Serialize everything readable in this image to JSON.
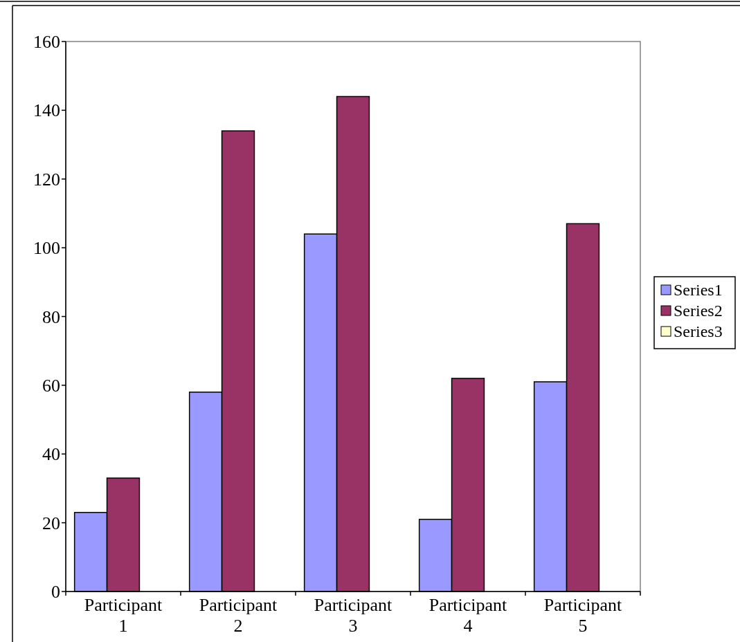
{
  "chart_data": {
    "type": "bar",
    "categories": [
      "Participant 1",
      "Participant 2",
      "Participant 3",
      "Participant 4",
      "Participant 5"
    ],
    "series": [
      {
        "name": "Series1",
        "color": "#9999ff",
        "values": [
          23,
          58,
          104,
          21,
          61
        ]
      },
      {
        "name": "Series2",
        "color": "#993366",
        "values": [
          33,
          134,
          144,
          62,
          107
        ]
      },
      {
        "name": "Series3",
        "color": "#ffffcc",
        "values": [
          null,
          null,
          null,
          null,
          null
        ]
      }
    ],
    "ylim": [
      0,
      160
    ],
    "yticks": [
      0,
      20,
      40,
      60,
      80,
      100,
      120,
      140,
      160
    ],
    "grid": false,
    "legend": "right"
  }
}
